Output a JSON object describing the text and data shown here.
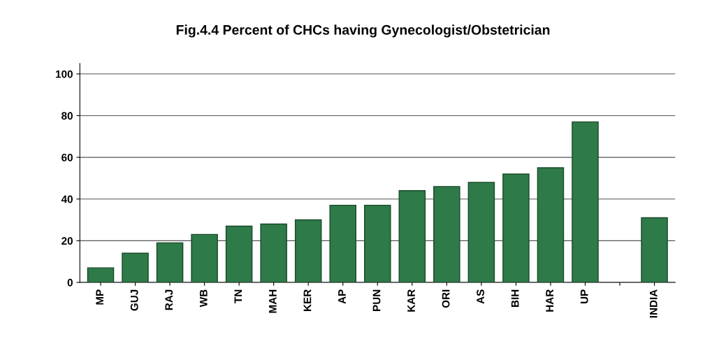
{
  "chart_data": {
    "type": "bar",
    "title": "Fig.4.4 Percent of CHCs having Gynecologist/Obstetrician",
    "categories": [
      "MP",
      "GUJ",
      "RAJ",
      "WB",
      "TN",
      "MAH",
      "KER",
      "AP",
      "PUN",
      "KAR",
      "ORI",
      "AS",
      "BIH",
      "HAR",
      "UP",
      null,
      "INDIA"
    ],
    "values": [
      7,
      14,
      19,
      23,
      27,
      28,
      30,
      37,
      37,
      44,
      46,
      48,
      52,
      55,
      77,
      null,
      31
    ],
    "color": "#2e7a48",
    "ylim": [
      0,
      105
    ],
    "yticks": [
      0,
      20,
      40,
      60,
      80,
      100
    ],
    "grid": "y"
  }
}
